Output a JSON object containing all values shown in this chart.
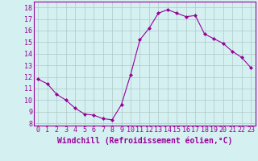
{
  "x": [
    0,
    1,
    2,
    3,
    4,
    5,
    6,
    7,
    8,
    9,
    10,
    11,
    12,
    13,
    14,
    15,
    16,
    17,
    18,
    19,
    20,
    21,
    22,
    23
  ],
  "y": [
    11.8,
    11.4,
    10.5,
    10.0,
    9.3,
    8.8,
    8.7,
    8.4,
    8.3,
    9.6,
    12.2,
    15.2,
    16.2,
    17.5,
    17.8,
    17.5,
    17.2,
    17.3,
    15.7,
    15.3,
    14.9,
    14.2,
    13.7,
    12.8
  ],
  "line_color": "#990099",
  "marker": "D",
  "marker_size": 2.0,
  "bg_color": "#d4f0f0",
  "grid_color": "#b0c8c8",
  "xlabel": "Windchill (Refroidissement éolien,°C)",
  "xlabel_fontsize": 7,
  "tick_fontsize": 6,
  "ylabel_ticks": [
    8,
    9,
    10,
    11,
    12,
    13,
    14,
    15,
    16,
    17,
    18
  ],
  "xlim": [
    -0.5,
    23.5
  ],
  "ylim": [
    7.8,
    18.5
  ]
}
